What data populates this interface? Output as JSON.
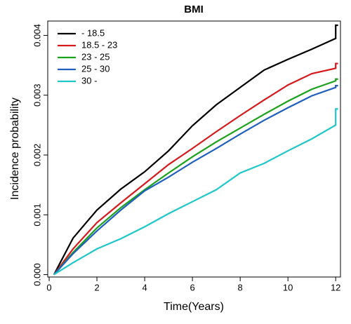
{
  "chart_data": {
    "type": "line",
    "title": "BMI",
    "xlabel": "Time(Years)",
    "ylabel": "Incidence probability",
    "x": [
      0.2,
      1,
      2,
      3,
      4,
      5,
      6,
      7,
      8,
      9,
      10,
      11,
      12,
      12,
      12.1
    ],
    "series": [
      {
        "name": "- 18.5",
        "color": "#000000",
        "values": [
          0,
          0.00061,
          0.00108,
          0.00143,
          0.00172,
          0.00207,
          0.00249,
          0.00284,
          0.00313,
          0.00342,
          0.0036,
          0.00377,
          0.00395,
          0.00417,
          0.00417
        ]
      },
      {
        "name": "18.5 - 23",
        "color": "#d7191c",
        "values": [
          0,
          0.00043,
          0.00087,
          0.0012,
          0.00152,
          0.00184,
          0.00211,
          0.00239,
          0.00266,
          0.00292,
          0.00317,
          0.00336,
          0.00345,
          0.00353,
          0.00353
        ]
      },
      {
        "name": "23 - 25",
        "color": "#1aa31a",
        "values": [
          0,
          0.00037,
          0.00078,
          0.00112,
          0.00142,
          0.0017,
          0.00197,
          0.00222,
          0.00245,
          0.00268,
          0.0029,
          0.0031,
          0.00324,
          0.00327,
          0.00327
        ]
      },
      {
        "name": "25 - 30",
        "color": "#1f5fbf",
        "values": [
          0,
          0.00035,
          0.00073,
          0.00108,
          0.0014,
          0.00163,
          0.00188,
          0.00211,
          0.00235,
          0.00258,
          0.00279,
          0.00299,
          0.00313,
          0.00316,
          0.00316
        ]
      },
      {
        "name": "30 -",
        "color": "#1ec8c8",
        "values": [
          0,
          0.0002,
          0.00043,
          0.0006,
          0.0008,
          0.00102,
          0.00122,
          0.00142,
          0.0017,
          0.00186,
          0.00207,
          0.00227,
          0.0025,
          0.00277,
          0.00277
        ]
      }
    ],
    "xlim": [
      -0.06,
      12.2
    ],
    "xticks": [
      0,
      2,
      4,
      6,
      8,
      10,
      12
    ],
    "ylim": [
      -4e-05,
      0.00424
    ],
    "yticks": [
      {
        "value": 0,
        "label": "0.000"
      },
      {
        "value": 0.001,
        "label": "0.001"
      },
      {
        "value": 0.002,
        "label": "0.002"
      },
      {
        "value": 0.003,
        "label": "0.003"
      },
      {
        "value": 0.004,
        "label": "0.004"
      }
    ],
    "legend": "top-left"
  }
}
